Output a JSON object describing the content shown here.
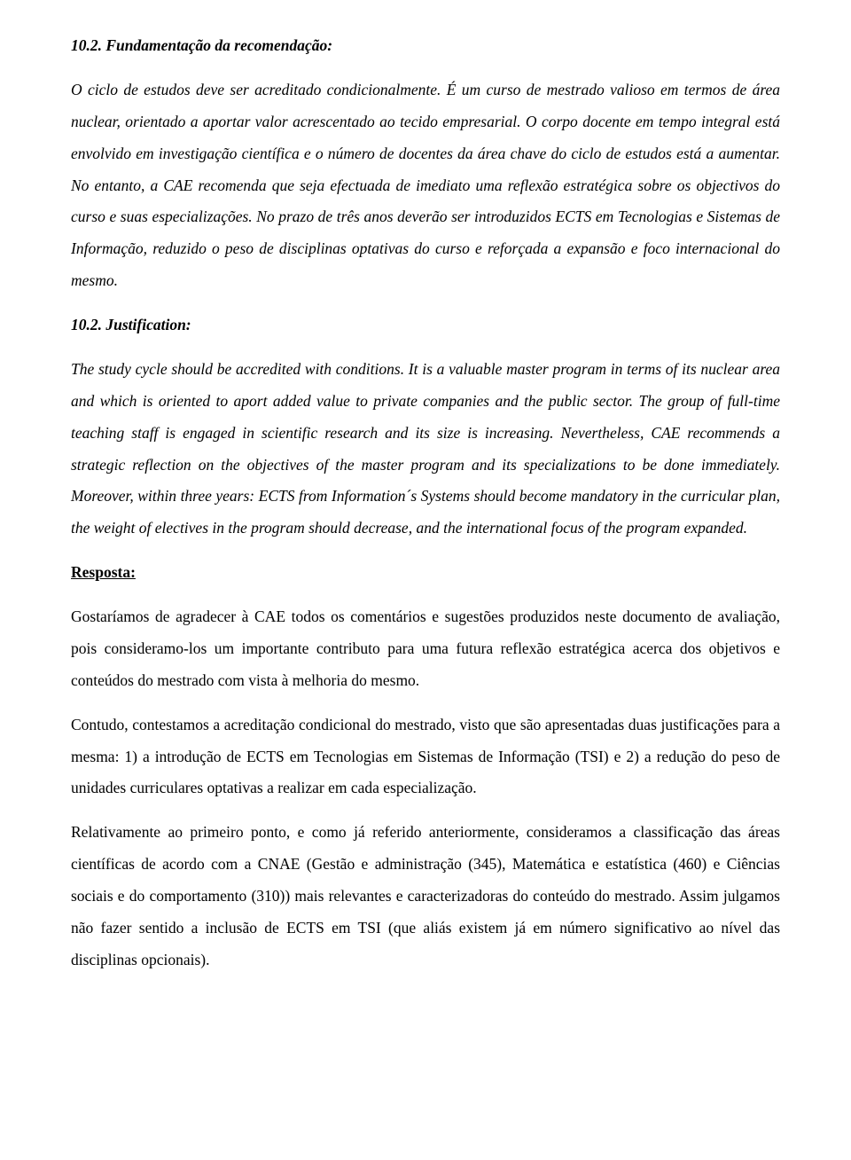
{
  "doc": {
    "h1": "10.2. Fundamentação da recomendação:",
    "p1": "O ciclo de estudos deve ser acreditado condicionalmente. É um curso de mestrado valioso em termos de área nuclear, orientado a aportar valor acrescentado ao tecido empresarial. O corpo docente em tempo integral está envolvido em investigação científica e o número de docentes da área chave do ciclo de estudos está a aumentar. No entanto, a CAE recomenda que seja efectuada de imediato uma reflexão estratégica sobre os objectivos do curso e suas especializações. No prazo de três anos deverão ser introduzidos ECTS em Tecnologias e Sistemas de Informação, reduzido o peso de disciplinas optativas do curso e reforçada a expansão e foco internacional do mesmo.",
    "h2": "10.2. Justification:",
    "p2": "The study cycle should be accredited with conditions. It is a valuable master program in terms of its nuclear area and which is oriented to aport added value to private companies and the public sector. The group of full-time teaching staff is engaged in scientific research and its size is increasing. Nevertheless, CAE recommends a strategic reflection on the objectives of the master program and its specializations to be done immediately.  Moreover, within three years: ECTS from Information´s Systems should become mandatory in the curricular plan, the weight of electives in the program should decrease, and the international focus of the program expanded.",
    "h3": "Resposta:",
    "p3": "Gostaríamos de agradecer à CAE todos os comentários e sugestões produzidos neste documento de avaliação, pois consideramo-los um importante contributo para uma futura reflexão estratégica acerca dos objetivos e conteúdos do mestrado com vista à melhoria do mesmo.",
    "p4": "Contudo, contestamos a acreditação condicional do mestrado, visto que são apresentadas duas justificações para a mesma: 1) a introdução de ECTS em Tecnologias em Sistemas de Informação (TSI) e 2) a redução do peso de unidades curriculares optativas a realizar em cada especialização.",
    "p5": "Relativamente ao primeiro ponto, e como já referido anteriormente, consideramos a classificação das áreas científicas de acordo com a CNAE (Gestão e administração (345), Matemática e estatística (460) e Ciências sociais e do comportamento (310)) mais relevantes e caracterizadoras do conteúdo do mestrado. Assim julgamos não fazer sentido a inclusão de ECTS em TSI (que aliás existem já em número significativo ao nível das disciplinas opcionais)."
  }
}
